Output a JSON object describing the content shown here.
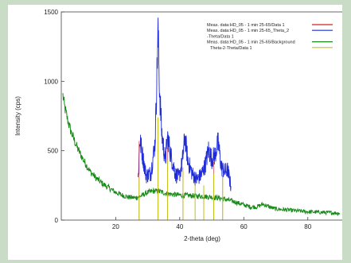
{
  "chart_data": {
    "type": "line",
    "xlabel": "2-theta (deg)",
    "ylabel": "Intensity (cps)",
    "xlim": [
      3,
      91
    ],
    "ylim": [
      0,
      1500
    ],
    "x_ticks": [
      20,
      40,
      60,
      80
    ],
    "y_ticks": [
      0,
      500,
      1000,
      1500
    ],
    "legend_position": "top-right",
    "series": [
      {
        "name": "Meas. data:HD_05 - 1 min 25-65/Data 1",
        "color": "#d42020",
        "role": "measured",
        "x": [
          27.3,
          33.2,
          36.2,
          41.0,
          50.6,
          53.4
        ],
        "y": [
          570,
          720,
          520,
          380,
          420,
          320
        ]
      },
      {
        "name": "Meas. data:HD_05 - 1 min 25-65_Theta_2 -Theta/Data 1",
        "color": "#1f2bd8",
        "role": "measured",
        "x": [
          27,
          27.5,
          29.5,
          31,
          32.3,
          32.8,
          33.2,
          33.7,
          34.4,
          35.5,
          36.2,
          37.2,
          38.7,
          39.8,
          40.8,
          41.6,
          42.6,
          44.0,
          45.3,
          46.8,
          48.0,
          49.0,
          50.0,
          51.0,
          52.0,
          53.0,
          54.0,
          55.0,
          56.0
        ],
        "y": [
          290,
          585,
          320,
          340,
          560,
          980,
          1360,
          940,
          620,
          430,
          600,
          470,
          330,
          310,
          420,
          600,
          420,
          330,
          290,
          330,
          400,
          510,
          440,
          470,
          560,
          380,
          350,
          360,
          240
        ]
      },
      {
        "name": "Meas. data:HD_05 - 1 min 25-65/Background",
        "color": "#1a8a1a",
        "role": "background",
        "x": [
          3.5,
          4.0,
          5.0,
          6.0,
          8.0,
          10.0,
          12.0,
          14.0,
          16.0,
          18.0,
          20.0,
          22.0,
          24.0,
          26.0,
          28.0,
          30.0,
          32.0,
          34.0,
          36.0,
          40.0,
          44.0,
          48.0,
          52.0,
          56.0,
          60.0,
          62.0,
          64.0,
          66.0,
          68.0,
          70.0,
          75.0,
          80.0,
          85.0,
          90.0
        ],
        "y": [
          900,
          820,
          720,
          640,
          520,
          430,
          350,
          300,
          260,
          230,
          200,
          180,
          165,
          160,
          175,
          200,
          210,
          205,
          190,
          180,
          175,
          170,
          160,
          140,
          110,
          95,
          95,
          115,
          95,
          80,
          70,
          60,
          55,
          50
        ]
      },
      {
        "name": "Theta-2-Theta/Data 1",
        "color": "#c2c21a",
        "role": "peak-markers",
        "x": [
          27.3,
          33.2,
          36.2,
          41.0,
          44.8,
          47.5,
          50.6,
          53.4
        ],
        "y": [
          300,
          740,
          430,
          360,
          270,
          250,
          330,
          310
        ]
      }
    ]
  }
}
